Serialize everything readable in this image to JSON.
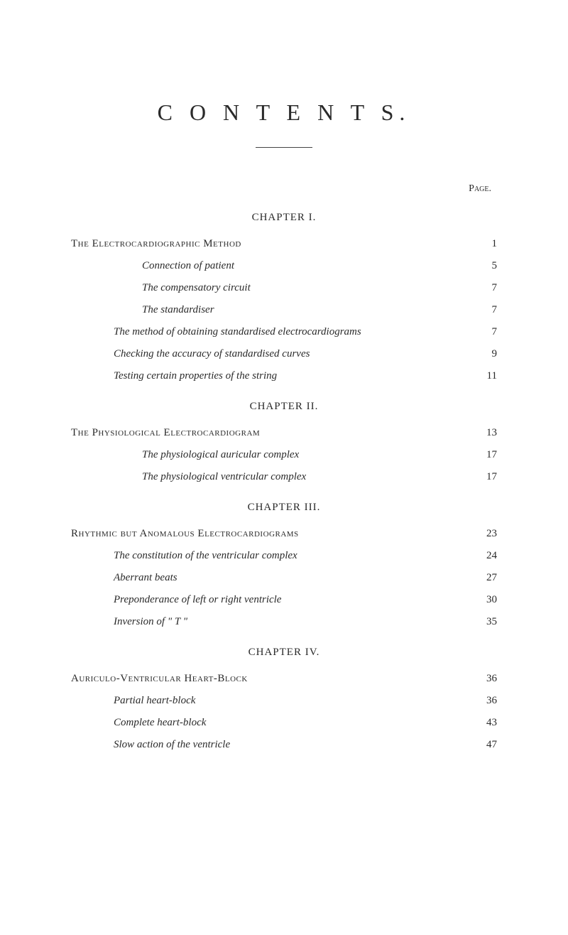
{
  "title": "C O N T E N T S.",
  "pageLabel": "Page.",
  "chapters": [
    {
      "heading": "CHAPTER I.",
      "entries": [
        {
          "label": "The Electrocardiographic Method",
          "page": "1",
          "style": "smallcaps",
          "indent": 0
        },
        {
          "label": "Connection of patient",
          "page": "5",
          "style": "italic",
          "indent": 1
        },
        {
          "label": "The compensatory circuit",
          "page": "7",
          "style": "italic",
          "indent": 1
        },
        {
          "label": "The standardiser",
          "page": "7",
          "style": "italic",
          "indent": 1
        },
        {
          "label": "The method of obtaining standardised electrocardiograms",
          "page": "7",
          "style": "italic",
          "indent": 2
        },
        {
          "label": "Checking the accuracy of standardised curves",
          "page": "9",
          "style": "italic",
          "indent": 2
        },
        {
          "label": "Testing certain properties of the string",
          "page": "11",
          "style": "italic",
          "indent": 2
        }
      ]
    },
    {
      "heading": "CHAPTER II.",
      "entries": [
        {
          "label": "The Physiological Electrocardiogram",
          "page": "13",
          "style": "smallcaps",
          "indent": 0
        },
        {
          "label": "The physiological auricular complex",
          "page": "17",
          "style": "italic",
          "indent": 1
        },
        {
          "label": "The physiological ventricular complex",
          "page": "17",
          "style": "italic",
          "indent": 1
        }
      ]
    },
    {
      "heading": "CHAPTER III.",
      "entries": [
        {
          "label": "Rhythmic but Anomalous Electrocardiograms",
          "page": "23",
          "style": "smallcaps",
          "indent": 0
        },
        {
          "label": "The constitution of the ventricular complex",
          "page": "24",
          "style": "italic",
          "indent": 2
        },
        {
          "label": "Aberrant beats",
          "page": "27",
          "style": "italic",
          "indent": 2
        },
        {
          "label": "Preponderance of left or right ventricle",
          "page": "30",
          "style": "italic",
          "indent": 2
        },
        {
          "label": "Inversion of \" T \"",
          "page": "35",
          "style": "italic",
          "indent": 2
        }
      ]
    },
    {
      "heading": "CHAPTER IV.",
      "entries": [
        {
          "label": "Auriculo-Ventricular Heart-Block",
          "page": "36",
          "style": "smallcaps",
          "indent": 0
        },
        {
          "label": "Partial heart-block",
          "page": "36",
          "style": "italic",
          "indent": 2
        },
        {
          "label": "Complete heart-block",
          "page": "43",
          "style": "italic",
          "indent": 2
        },
        {
          "label": "Slow action of the ventricle",
          "page": "47",
          "style": "italic",
          "indent": 2
        }
      ]
    }
  ]
}
